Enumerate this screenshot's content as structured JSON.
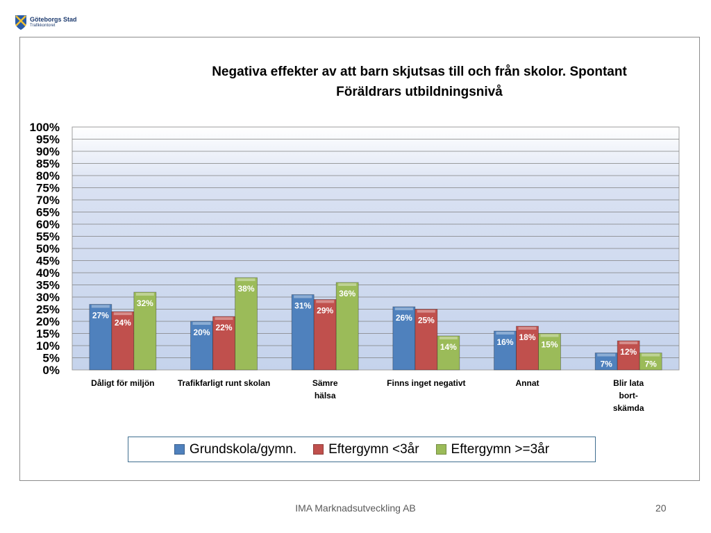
{
  "logo": {
    "name": "Göteborgs Stad",
    "sub": "Trafikkontoret",
    "icon": "city-crest-icon"
  },
  "footer": {
    "company": "IMA Marknadsutveckling AB",
    "page": "20"
  },
  "chart_data": {
    "type": "bar",
    "title": "Negativa effekter av att barn skjutsas till och från skolor. Spontant",
    "subtitle": "Föräldrars utbildningsnivå",
    "xlabel": "",
    "ylabel": "",
    "ylim": [
      0,
      100
    ],
    "yticks": [
      "0%",
      "5%",
      "10%",
      "15%",
      "20%",
      "25%",
      "30%",
      "35%",
      "40%",
      "45%",
      "50%",
      "55%",
      "60%",
      "65%",
      "70%",
      "75%",
      "80%",
      "85%",
      "90%",
      "95%",
      "100%"
    ],
    "grid": true,
    "legend_position": "bottom",
    "categories": [
      [
        "Dåligt för miljön"
      ],
      [
        "Trafikfarligt runt skolan"
      ],
      [
        "Sämre",
        "hälsa"
      ],
      [
        "Finns inget negativt"
      ],
      [
        "Annat"
      ],
      [
        "Blir lata",
        "bort-",
        "skämda"
      ]
    ],
    "series": [
      {
        "name": "Grundskola/gymn.",
        "color": "#4f81bd",
        "values": [
          27,
          20,
          31,
          26,
          16,
          7
        ],
        "labels": [
          "27%",
          "20%",
          "31%",
          "26%",
          "16%",
          "7%"
        ]
      },
      {
        "name": "Eftergymn <3år",
        "color": "#c0504d",
        "values": [
          24,
          22,
          29,
          25,
          18,
          12
        ],
        "labels": [
          "24%",
          "22%",
          "29%",
          "25%",
          "18%",
          "12%"
        ]
      },
      {
        "name": "Eftergymn >=3år",
        "color": "#9bbb59",
        "values": [
          32,
          38,
          36,
          14,
          15,
          7
        ],
        "labels": [
          "32%",
          "38%",
          "36%",
          "14%",
          "15%",
          "7%"
        ]
      }
    ]
  }
}
